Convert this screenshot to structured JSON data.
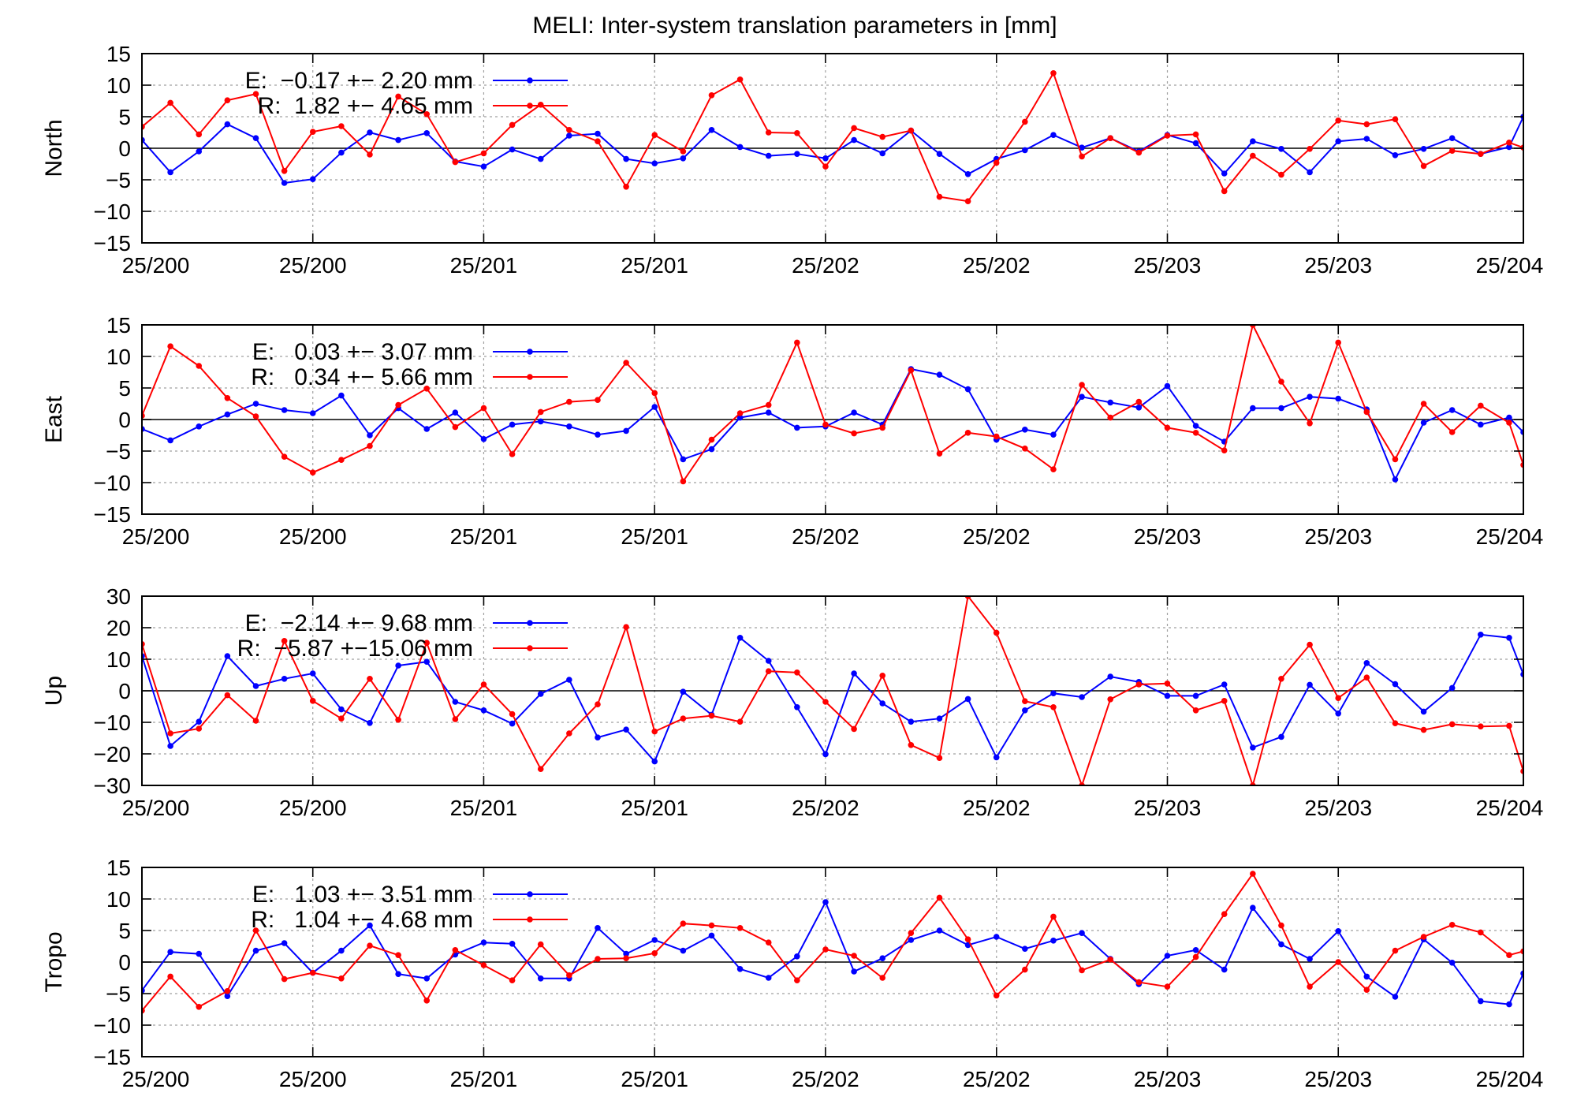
{
  "title": "MELI: Inter-system translation parameters in [mm]",
  "colors": {
    "E": "#0000ff",
    "R": "#ff0000",
    "axis": "#000000",
    "grid": "#a0a0a0"
  },
  "chart_data": [
    {
      "type": "line",
      "ylabel": "North",
      "ylim": [
        -15,
        15
      ],
      "yticks": [
        -15,
        -10,
        -5,
        0,
        5,
        10,
        15
      ],
      "xlim": [
        0,
        97
      ],
      "xtick_labels": [
        "25/200",
        "25/200",
        "25/201",
        "25/201",
        "25/202",
        "25/202",
        "25/203",
        "25/203",
        "25/204"
      ],
      "grid": true,
      "legend": "top-left",
      "series": [
        {
          "name": "E:  −0.17 +− 2.20 mm",
          "color": "#0000ff",
          "x": [
            0,
            2,
            4,
            6,
            8,
            10,
            12,
            14,
            16,
            18,
            20,
            22,
            24,
            26,
            28,
            30,
            32,
            34,
            36,
            38,
            40,
            42,
            44,
            46,
            48,
            50,
            52,
            54,
            56,
            58,
            60,
            62,
            64,
            66,
            68,
            70,
            72,
            74,
            76,
            78,
            80,
            82,
            84,
            86,
            88,
            90,
            92,
            94,
            96,
            97
          ],
          "y": [
            1.3,
            -3.8,
            -0.5,
            3.8,
            1.6,
            -5.5,
            -4.9,
            -0.7,
            2.5,
            1.3,
            2.4,
            -2.1,
            -2.9,
            -0.2,
            -1.7,
            2.0,
            2.3,
            -1.7,
            -2.4,
            -1.6,
            2.9,
            0.2,
            -1.2,
            -0.9,
            -1.6,
            1.3,
            -0.8,
            2.8,
            -0.9,
            -4.1,
            -1.7,
            -0.3,
            2.1,
            0.1,
            1.6,
            -0.5,
            2.1,
            0.8,
            -4.0,
            1.1,
            -0.1,
            -3.8,
            1.1,
            1.5,
            -1.1,
            -0.1,
            1.6,
            -0.9,
            0.2,
            5.0
          ]
        },
        {
          "name": "R:  1.82 +− 4.65 mm",
          "color": "#ff0000",
          "x": [
            0,
            2,
            4,
            6,
            8,
            10,
            12,
            14,
            16,
            18,
            20,
            22,
            24,
            26,
            28,
            30,
            32,
            34,
            36,
            38,
            40,
            42,
            44,
            46,
            48,
            50,
            52,
            54,
            56,
            58,
            60,
            62,
            64,
            66,
            68,
            70,
            72,
            74,
            76,
            78,
            80,
            82,
            84,
            86,
            88,
            90,
            92,
            94,
            96,
            97
          ],
          "y": [
            3.4,
            7.2,
            2.2,
            7.6,
            8.6,
            -3.6,
            2.6,
            3.5,
            -1.0,
            8.2,
            5.4,
            -2.2,
            -0.8,
            3.7,
            6.9,
            2.9,
            1.1,
            -6.1,
            2.1,
            -0.5,
            8.4,
            10.9,
            2.5,
            2.4,
            -2.9,
            3.2,
            1.8,
            2.8,
            -7.7,
            -8.4,
            -2.3,
            4.2,
            11.9,
            -1.3,
            1.6,
            -0.7,
            2.0,
            2.2,
            -6.8,
            -1.2,
            -4.2,
            -0.1,
            4.4,
            3.8,
            4.6,
            -2.8,
            -0.4,
            -0.9,
            0.9,
            0.1
          ]
        }
      ]
    },
    {
      "type": "line",
      "ylabel": "East",
      "ylim": [
        -15,
        15
      ],
      "yticks": [
        -15,
        -10,
        -5,
        0,
        5,
        10,
        15
      ],
      "xlim": [
        0,
        97
      ],
      "xtick_labels": [
        "25/200",
        "25/200",
        "25/201",
        "25/201",
        "25/202",
        "25/202",
        "25/203",
        "25/203",
        "25/204"
      ],
      "grid": true,
      "legend": "top-left",
      "series": [
        {
          "name": "E:   0.03 +− 3.07 mm",
          "color": "#0000ff",
          "x": [
            0,
            2,
            4,
            6,
            8,
            10,
            12,
            14,
            16,
            18,
            20,
            22,
            24,
            26,
            28,
            30,
            32,
            34,
            36,
            38,
            40,
            42,
            44,
            46,
            48,
            50,
            52,
            54,
            56,
            58,
            60,
            62,
            64,
            66,
            68,
            70,
            72,
            74,
            76,
            78,
            80,
            82,
            84,
            86,
            88,
            90,
            92,
            94,
            96,
            97
          ],
          "y": [
            -1.5,
            -3.3,
            -1.1,
            0.8,
            2.5,
            1.5,
            1.0,
            3.8,
            -2.5,
            1.8,
            -1.5,
            1.1,
            -3.1,
            -0.8,
            -0.3,
            -1.1,
            -2.4,
            -1.8,
            2.0,
            -6.3,
            -4.7,
            0.3,
            1.1,
            -1.3,
            -1.1,
            1.1,
            -0.8,
            8.0,
            7.1,
            4.8,
            -3.2,
            -1.6,
            -2.4,
            3.6,
            2.7,
            1.9,
            5.3,
            -1.0,
            -3.5,
            1.8,
            1.8,
            3.6,
            3.3,
            1.6,
            -9.5,
            -0.5,
            1.5,
            -0.8,
            0.3,
            -2.0
          ]
        },
        {
          "name": "R:   0.34 +− 5.66 mm",
          "color": "#ff0000",
          "x": [
            0,
            2,
            4,
            6,
            8,
            10,
            12,
            14,
            16,
            18,
            20,
            22,
            24,
            26,
            28,
            30,
            32,
            34,
            36,
            38,
            40,
            42,
            44,
            46,
            48,
            50,
            52,
            54,
            56,
            58,
            60,
            62,
            64,
            66,
            68,
            70,
            72,
            74,
            76,
            78,
            80,
            82,
            84,
            86,
            88,
            90,
            92,
            94,
            96,
            97
          ],
          "y": [
            0.6,
            11.6,
            8.5,
            3.4,
            0.5,
            -5.9,
            -8.4,
            -6.4,
            -4.2,
            2.3,
            4.9,
            -1.2,
            1.8,
            -5.5,
            1.2,
            2.8,
            3.1,
            9.0,
            4.2,
            -9.8,
            -3.2,
            1.0,
            2.3,
            12.2,
            -0.8,
            -2.2,
            -1.3,
            7.8,
            -5.4,
            -2.1,
            -2.7,
            -4.6,
            -7.9,
            5.5,
            0.3,
            2.8,
            -1.3,
            -2.1,
            -4.9,
            15.0,
            6.0,
            -0.6,
            12.2,
            1.2,
            -6.3,
            2.5,
            -2.0,
            2.2,
            -0.5,
            -7.2
          ]
        }
      ]
    },
    {
      "type": "line",
      "ylabel": "Up",
      "ylim": [
        -30,
        30
      ],
      "yticks": [
        -30,
        -20,
        -10,
        0,
        10,
        20,
        30
      ],
      "xlim": [
        0,
        97
      ],
      "xtick_labels": [
        "25/200",
        "25/200",
        "25/201",
        "25/201",
        "25/202",
        "25/202",
        "25/203",
        "25/203",
        "25/204"
      ],
      "grid": true,
      "legend": "top-left",
      "series": [
        {
          "name": "E:  −2.14 +− 9.68 mm",
          "color": "#0000ff",
          "x": [
            0,
            2,
            4,
            6,
            8,
            10,
            12,
            14,
            16,
            18,
            20,
            22,
            24,
            26,
            28,
            30,
            32,
            34,
            36,
            38,
            40,
            42,
            44,
            46,
            48,
            50,
            52,
            54,
            56,
            58,
            60,
            62,
            64,
            66,
            68,
            70,
            72,
            74,
            76,
            78,
            80,
            82,
            84,
            86,
            88,
            90,
            92,
            94,
            96,
            97
          ],
          "y": [
            11.0,
            -17.5,
            -9.8,
            11.0,
            1.5,
            3.8,
            5.5,
            -5.9,
            -10.2,
            8.0,
            9.2,
            -3.5,
            -6.2,
            -10.4,
            -1.0,
            3.5,
            -14.8,
            -12.3,
            -22.4,
            -0.3,
            -7.6,
            16.8,
            9.5,
            -5.2,
            -20.1,
            5.5,
            -4.0,
            -9.8,
            -8.8,
            -2.6,
            -21.1,
            -6.2,
            -0.8,
            -2.0,
            4.5,
            2.8,
            -1.6,
            -1.6,
            2.0,
            -18.0,
            -14.6,
            1.9,
            -7.2,
            8.8,
            2.1,
            -6.6,
            0.9,
            17.8,
            16.8,
            5.2
          ]
        },
        {
          "name": "R:  −5.87 +−15.06 mm",
          "color": "#ff0000",
          "x": [
            0,
            2,
            4,
            6,
            8,
            10,
            12,
            14,
            16,
            18,
            20,
            22,
            24,
            26,
            28,
            30,
            32,
            34,
            36,
            38,
            40,
            42,
            44,
            46,
            48,
            50,
            52,
            54,
            56,
            58,
            60,
            62,
            64,
            66,
            68,
            70,
            72,
            74,
            76,
            78,
            80,
            82,
            84,
            86,
            88,
            90,
            92,
            94,
            96,
            97
          ],
          "y": [
            14.8,
            -13.5,
            -12.0,
            -1.4,
            -9.5,
            15.8,
            -3.2,
            -8.8,
            3.8,
            -9.2,
            15.2,
            -9.0,
            2.0,
            -7.4,
            -24.8,
            -13.5,
            -4.3,
            20.2,
            -12.9,
            -8.8,
            -7.9,
            -9.8,
            6.2,
            5.8,
            -3.5,
            -12.1,
            4.8,
            -17.2,
            -21.3,
            30.0,
            18.4,
            -3.3,
            -5.2,
            -30.0,
            -2.7,
            2.0,
            2.3,
            -6.2,
            -3.2,
            -30.0,
            3.8,
            14.6,
            -2.3,
            4.2,
            -10.3,
            -12.4,
            -10.6,
            -11.3,
            -11.1,
            -25.5
          ]
        }
      ]
    },
    {
      "type": "line",
      "ylabel": "Tropo",
      "ylim": [
        -15,
        15
      ],
      "yticks": [
        -15,
        -10,
        -5,
        0,
        5,
        10,
        15
      ],
      "xlim": [
        0,
        97
      ],
      "xtick_labels": [
        "25/200",
        "25/200",
        "25/201",
        "25/201",
        "25/202",
        "25/202",
        "25/203",
        "25/203",
        "25/204"
      ],
      "grid": true,
      "legend": "top-left",
      "series": [
        {
          "name": "E:   1.03 +− 3.51 mm",
          "color": "#0000ff",
          "x": [
            0,
            2,
            4,
            6,
            8,
            10,
            12,
            14,
            16,
            18,
            20,
            22,
            24,
            26,
            28,
            30,
            32,
            34,
            36,
            38,
            40,
            42,
            44,
            46,
            48,
            50,
            52,
            54,
            56,
            58,
            60,
            62,
            64,
            66,
            68,
            70,
            72,
            74,
            76,
            78,
            80,
            82,
            84,
            86,
            88,
            90,
            92,
            94,
            96,
            97
          ],
          "y": [
            -4.5,
            1.6,
            1.3,
            -5.4,
            1.8,
            3.0,
            -1.7,
            1.8,
            5.8,
            -1.9,
            -2.6,
            1.2,
            3.1,
            2.9,
            -2.6,
            -2.6,
            5.4,
            1.3,
            3.5,
            1.8,
            4.2,
            -1.1,
            -2.5,
            0.9,
            9.5,
            -1.5,
            0.6,
            3.5,
            5.0,
            2.7,
            4.0,
            2.1,
            3.4,
            4.6,
            0.5,
            -3.5,
            1.0,
            1.9,
            -1.2,
            8.6,
            2.8,
            0.5,
            4.9,
            -2.3,
            -5.5,
            3.6,
            -0.1,
            -6.2,
            -6.7,
            -1.8
          ]
        },
        {
          "name": "R:   1.04 +− 4.68 mm",
          "color": "#ff0000",
          "x": [
            0,
            2,
            4,
            6,
            8,
            10,
            12,
            14,
            16,
            18,
            20,
            22,
            24,
            26,
            28,
            30,
            32,
            34,
            36,
            38,
            40,
            42,
            44,
            46,
            48,
            50,
            52,
            54,
            56,
            58,
            60,
            62,
            64,
            66,
            68,
            70,
            72,
            74,
            76,
            78,
            80,
            82,
            84,
            86,
            88,
            90,
            92,
            94,
            96,
            97
          ],
          "y": [
            -7.7,
            -2.3,
            -7.1,
            -4.6,
            5.0,
            -2.7,
            -1.7,
            -2.6,
            2.6,
            1.1,
            -6.1,
            1.9,
            -0.5,
            -2.9,
            2.8,
            -2.1,
            0.5,
            0.6,
            1.4,
            6.1,
            5.8,
            5.4,
            3.1,
            -2.9,
            2.0,
            1.0,
            -2.5,
            4.6,
            10.2,
            3.6,
            -5.3,
            -1.2,
            7.2,
            -1.3,
            0.4,
            -3.2,
            -3.9,
            0.8,
            7.6,
            14.0,
            5.8,
            -3.9,
            0.0,
            -4.4,
            1.8,
            4.0,
            5.9,
            4.7,
            1.1,
            1.7
          ]
        }
      ]
    }
  ]
}
